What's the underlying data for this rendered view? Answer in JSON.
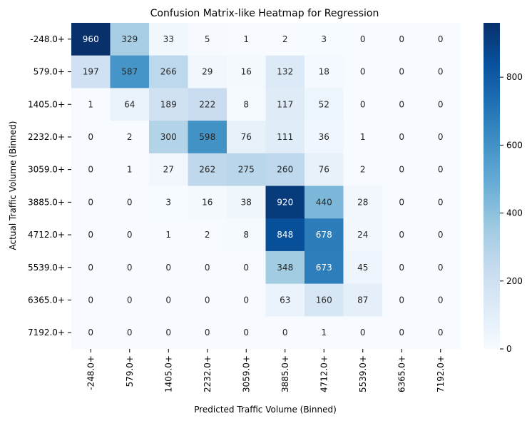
{
  "chart_data": {
    "type": "heatmap",
    "title": "Confusion Matrix-like Heatmap for Regression",
    "xlabel": "Predicted Traffic Volume (Binned)",
    "ylabel": "Actual Traffic Volume (Binned)",
    "x_categories": [
      "-248.0+",
      "579.0+",
      "1405.0+",
      "2232.0+",
      "3059.0+",
      "3885.0+",
      "4712.0+",
      "5539.0+",
      "6365.0+",
      "7192.0+"
    ],
    "y_categories": [
      "-248.0+",
      "579.0+",
      "1405.0+",
      "2232.0+",
      "3059.0+",
      "3885.0+",
      "4712.0+",
      "5539.0+",
      "6365.0+",
      "7192.0+"
    ],
    "values": [
      [
        960,
        329,
        33,
        5,
        1,
        2,
        3,
        0,
        0,
        0
      ],
      [
        197,
        587,
        266,
        29,
        16,
        132,
        18,
        0,
        0,
        0
      ],
      [
        1,
        64,
        189,
        222,
        8,
        117,
        52,
        0,
        0,
        0
      ],
      [
        0,
        2,
        300,
        598,
        76,
        111,
        36,
        1,
        0,
        0
      ],
      [
        0,
        1,
        27,
        262,
        275,
        260,
        76,
        2,
        0,
        0
      ],
      [
        0,
        0,
        3,
        16,
        38,
        920,
        440,
        28,
        0,
        0
      ],
      [
        0,
        0,
        1,
        2,
        8,
        848,
        678,
        24,
        0,
        0
      ],
      [
        0,
        0,
        0,
        0,
        0,
        348,
        673,
        45,
        0,
        0
      ],
      [
        0,
        0,
        0,
        0,
        0,
        63,
        160,
        87,
        0,
        0
      ],
      [
        0,
        0,
        0,
        0,
        0,
        0,
        1,
        0,
        0,
        0
      ]
    ],
    "colormap": "Blues",
    "color_range": [
      0,
      960
    ],
    "colorbar_ticks": [
      0,
      200,
      400,
      600,
      800
    ],
    "colorbar_tick_labels": [
      "0",
      "200",
      "400",
      "600",
      "800"
    ]
  }
}
